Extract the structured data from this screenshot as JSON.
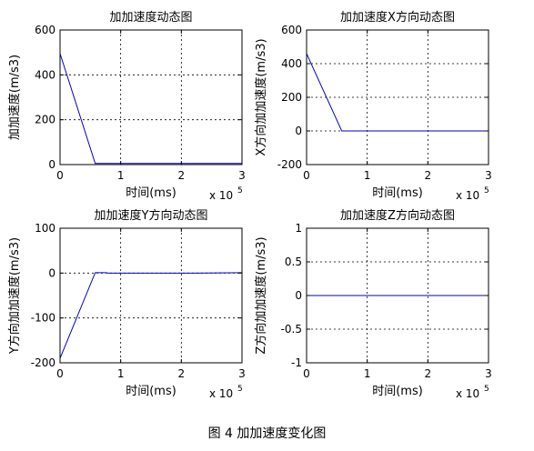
{
  "figure_caption": "图 4  加加速度变化图",
  "chart_data": [
    {
      "type": "line",
      "title": "加加速度动态图",
      "xlabel": "时间(ms)",
      "ylabel": "加加速度(m/s3)",
      "x_multiplier": "x 10",
      "x_multiplier_exp": "5",
      "xlim": [
        0,
        3
      ],
      "ylim": [
        0,
        600
      ],
      "xticks": [
        0,
        1,
        2,
        3
      ],
      "yticks": [
        0,
        200,
        400,
        600
      ],
      "grid": true,
      "color": "#0000cc",
      "series": [
        {
          "x": [
            0,
            0.58,
            3
          ],
          "y": [
            495,
            5,
            5
          ]
        }
      ]
    },
    {
      "type": "line",
      "title": "加加速度X方向动态图",
      "xlabel": "时间(ms)",
      "ylabel": "X方向加加速度(m/s3)",
      "x_multiplier": "x 10",
      "x_multiplier_exp": "5",
      "xlim": [
        0,
        3
      ],
      "ylim": [
        -200,
        600
      ],
      "xticks": [
        0,
        1,
        2,
        3
      ],
      "yticks": [
        -200,
        0,
        200,
        400,
        600
      ],
      "grid": true,
      "color": "#0000cc",
      "series": [
        {
          "x": [
            0,
            0.58,
            3
          ],
          "y": [
            460,
            0,
            0
          ]
        }
      ]
    },
    {
      "type": "line",
      "title": "加加速度Y方向动态图",
      "xlabel": "时间(ms)",
      "ylabel": "Y方向加加速度(m/s3)",
      "x_multiplier": "x 10",
      "x_multiplier_exp": "5",
      "xlim": [
        0,
        3
      ],
      "ylim": [
        -200,
        100
      ],
      "xticks": [
        0,
        1,
        2,
        3
      ],
      "yticks": [
        -200,
        -100,
        0,
        100
      ],
      "grid": true,
      "color": "#0000cc",
      "series": [
        {
          "x": [
            0,
            0.58,
            0.75,
            0.8,
            2.2,
            3
          ],
          "y": [
            -190,
            1,
            1,
            0,
            0,
            1
          ]
        }
      ]
    },
    {
      "type": "line",
      "title": "加加速度Z方向动态图",
      "xlabel": "时间(ms)",
      "ylabel": "Z方向加加速度(m/s3)",
      "x_multiplier": "x 10",
      "x_multiplier_exp": "5",
      "xlim": [
        0,
        3
      ],
      "ylim": [
        -1,
        1
      ],
      "xticks": [
        0,
        1,
        2,
        3
      ],
      "yticks": [
        -1,
        -0.5,
        0,
        0.5,
        1
      ],
      "grid": true,
      "color": "#0000cc",
      "series": [
        {
          "x": [
            0,
            3
          ],
          "y": [
            0,
            0
          ]
        }
      ]
    }
  ]
}
